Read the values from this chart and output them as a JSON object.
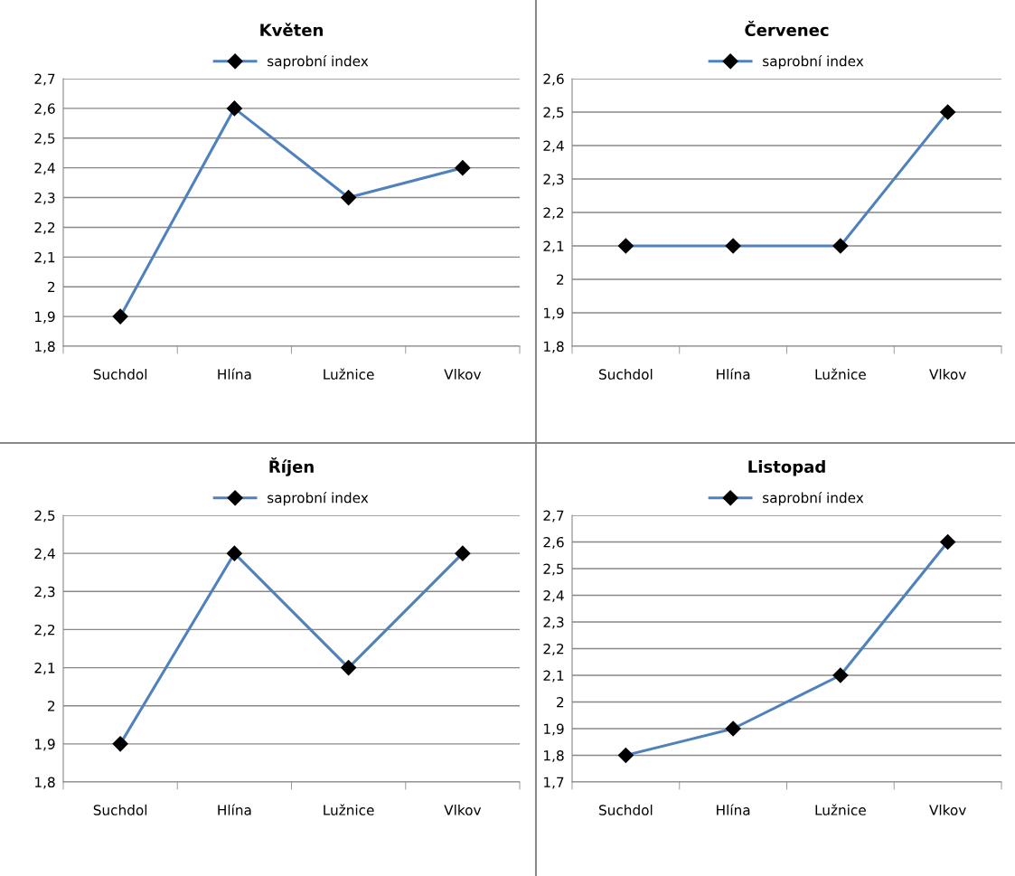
{
  "chart_data": [
    {
      "type": "line",
      "title": "Květen",
      "categories": [
        "Suchdol",
        "Hlína",
        "Lužnice",
        "Vlkov"
      ],
      "series": [
        {
          "name": "saprobní index",
          "color": "#4f81bd",
          "values": [
            1.9,
            2.6,
            2.3,
            2.4
          ]
        }
      ],
      "ylim": [
        1.8,
        2.7
      ],
      "yticks": [
        {
          "value": 1.8,
          "label": "1,8"
        },
        {
          "value": 1.9,
          "label": "1,9"
        },
        {
          "value": 2.0,
          "label": "2"
        },
        {
          "value": 2.1,
          "label": "2,1"
        },
        {
          "value": 2.2,
          "label": "2,2"
        },
        {
          "value": 2.3,
          "label": "2,3"
        },
        {
          "value": 2.4,
          "label": "2,4"
        },
        {
          "value": 2.5,
          "label": "2,5"
        },
        {
          "value": 2.6,
          "label": "2,6"
        },
        {
          "value": 2.7,
          "label": "2,7"
        }
      ],
      "grid": "y",
      "legend": "top",
      "marker": "diamond",
      "line_style": "solid"
    },
    {
      "type": "line",
      "title": "Červenec",
      "categories": [
        "Suchdol",
        "Hlína",
        "Lužnice",
        "Vlkov"
      ],
      "series": [
        {
          "name": "saprobní index",
          "color": "#4f81bd",
          "values": [
            2.1,
            2.1,
            2.1,
            2.5
          ]
        }
      ],
      "ylim": [
        1.8,
        2.6
      ],
      "yticks": [
        {
          "value": 1.8,
          "label": "1,8"
        },
        {
          "value": 1.9,
          "label": "1,9"
        },
        {
          "value": 2.0,
          "label": "2"
        },
        {
          "value": 2.1,
          "label": "2,1"
        },
        {
          "value": 2.2,
          "label": "2,2"
        },
        {
          "value": 2.3,
          "label": "2,3"
        },
        {
          "value": 2.4,
          "label": "2,4"
        },
        {
          "value": 2.5,
          "label": "2,5"
        },
        {
          "value": 2.6,
          "label": "2,6"
        }
      ],
      "grid": "y",
      "legend": "top",
      "marker": "diamond",
      "line_style": "solid"
    },
    {
      "type": "line",
      "title": "Říjen",
      "categories": [
        "Suchdol",
        "Hlína",
        "Lužnice",
        "Vlkov"
      ],
      "series": [
        {
          "name": "saprobní index",
          "color": "#4f81bd",
          "values": [
            1.9,
            2.4,
            2.1,
            2.4
          ]
        }
      ],
      "ylim": [
        1.8,
        2.5
      ],
      "yticks": [
        {
          "value": 1.8,
          "label": "1,8"
        },
        {
          "value": 1.9,
          "label": "1,9"
        },
        {
          "value": 2.0,
          "label": "2"
        },
        {
          "value": 2.1,
          "label": "2,1"
        },
        {
          "value": 2.2,
          "label": "2,2"
        },
        {
          "value": 2.3,
          "label": "2,3"
        },
        {
          "value": 2.4,
          "label": "2,4"
        },
        {
          "value": 2.5,
          "label": "2,5"
        }
      ],
      "grid": "y",
      "legend": "top",
      "marker": "diamond",
      "line_style": "solid"
    },
    {
      "type": "line",
      "title": "Listopad",
      "categories": [
        "Suchdol",
        "Hlína",
        "Lužnice",
        "Vlkov"
      ],
      "series": [
        {
          "name": "saprobní index",
          "color": "#4f81bd",
          "values": [
            1.8,
            1.9,
            2.1,
            2.6
          ]
        }
      ],
      "ylim": [
        1.7,
        2.7
      ],
      "yticks": [
        {
          "value": 1.7,
          "label": "1,7"
        },
        {
          "value": 1.8,
          "label": "1,8"
        },
        {
          "value": 1.9,
          "label": "1,9"
        },
        {
          "value": 2.0,
          "label": "2"
        },
        {
          "value": 2.1,
          "label": "2,1"
        },
        {
          "value": 2.2,
          "label": "2,2"
        },
        {
          "value": 2.3,
          "label": "2,3"
        },
        {
          "value": 2.4,
          "label": "2,4"
        },
        {
          "value": 2.5,
          "label": "2,5"
        },
        {
          "value": 2.6,
          "label": "2,6"
        },
        {
          "value": 2.7,
          "label": "2,7"
        }
      ],
      "grid": "y",
      "legend": "top",
      "marker": "diamond",
      "line_style": "solid"
    }
  ]
}
